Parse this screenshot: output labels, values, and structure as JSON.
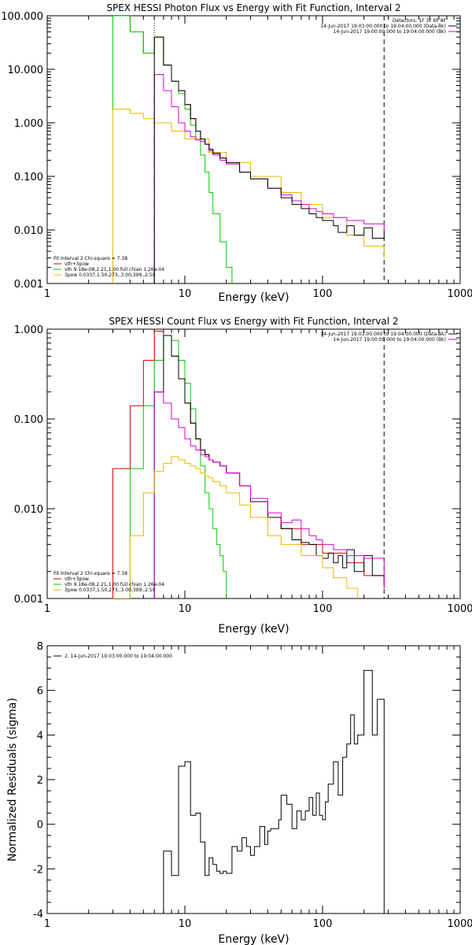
{
  "chart_data": [
    {
      "type": "line",
      "title": "SPEX HESSI Photon Flux vs Energy with Fit Function, Interval 2",
      "xlabel": "Energy (keV)",
      "ylabel": "",
      "xscale": "log",
      "yscale": "log",
      "xlim": [
        1,
        1000
      ],
      "ylim": [
        0.001,
        100
      ],
      "x_ticks": [
        {
          "v": 1,
          "label": "1"
        },
        {
          "v": 10,
          "label": "10"
        },
        {
          "v": 100,
          "label": "100"
        },
        {
          "v": 1000,
          "label": "1000"
        }
      ],
      "y_ticks": [
        {
          "v": 100,
          "label": "100.000"
        },
        {
          "v": 10,
          "label": "10.000"
        },
        {
          "v": 1,
          "label": "1.000"
        },
        {
          "v": 0.1,
          "label": "0.100"
        },
        {
          "v": 0.01,
          "label": "0.010"
        },
        {
          "v": 0.001,
          "label": "0.001"
        }
      ],
      "info": {
        "detectors": "Detectors: 1F 3F 6F 8F",
        "line1": "14-Jun-2017 19:03:00.000 to 19:04:00.000 (Data-Bk)",
        "line2": "14-Jun-2017 19:00:00.000 to 19:04:00.000 (Bk)"
      },
      "info_colors": [
        "#000000",
        "#dd00dd"
      ],
      "legend": {
        "header": "Fit Interval 2   Chi-square = 7.38",
        "entries": [
          {
            "label": "vth+3pow",
            "color": "#dd0000"
          },
          {
            "label": "vth 9.18e-08,2.21,1.00  full chian 1.26e-04",
            "color": "#00cc00"
          },
          {
            "label": "3pow 0.0337,1.50,273.,3.00,399.,2.50",
            "color": "#e6b800"
          }
        ]
      },
      "vlines": [
        {
          "x": 6,
          "style": "dotted"
        },
        {
          "x": 280,
          "style": "dashed"
        }
      ],
      "series": [
        {
          "color": "#dd0000",
          "x": [
            3,
            4,
            5,
            6,
            7,
            8,
            9,
            10,
            11,
            12,
            13,
            14,
            15,
            16,
            18,
            20
          ],
          "values": [
            100,
            50,
            20,
            40,
            12,
            6,
            4,
            2.2,
            1.2,
            0.7,
            0.5,
            0.4,
            0.32,
            0.27,
            0.22,
            0.18
          ]
        },
        {
          "color": "#00cc00",
          "x": [
            3,
            4,
            5,
            6,
            7,
            8,
            9,
            10,
            11,
            12,
            13,
            14,
            15,
            16,
            18,
            20,
            22
          ],
          "values": [
            100,
            50,
            20,
            40,
            12,
            6,
            3.5,
            1.8,
            0.9,
            0.5,
            0.25,
            0.12,
            0.05,
            0.02,
            0.006,
            0.002,
            0.001
          ]
        },
        {
          "color": "#e6b800",
          "x": [
            3,
            4,
            5,
            6,
            8,
            10,
            15,
            20,
            30,
            50,
            70,
            100,
            150,
            200,
            280
          ],
          "values": [
            1.8,
            1.5,
            1.2,
            1.0,
            0.7,
            0.5,
            0.28,
            0.18,
            0.1,
            0.05,
            0.03,
            0.017,
            0.008,
            0.005,
            0.003
          ]
        },
        {
          "color": "#dd00dd",
          "x": [
            6,
            7,
            8,
            9,
            10,
            11,
            12,
            13,
            14,
            15,
            16,
            18,
            20,
            25,
            30,
            40,
            50,
            60,
            70,
            80,
            90,
            100,
            120,
            150,
            200,
            280
          ],
          "values": [
            8,
            4,
            2,
            1,
            0.7,
            0.55,
            0.48,
            0.45,
            0.4,
            0.3,
            0.25,
            0.2,
            0.17,
            0.12,
            0.09,
            0.06,
            0.045,
            0.035,
            0.03,
            0.025,
            0.022,
            0.02,
            0.017,
            0.015,
            0.013,
            0.01
          ]
        },
        {
          "color": "#000000",
          "x": [
            6,
            7,
            8,
            9,
            10,
            11,
            12,
            13,
            14,
            15,
            16,
            18,
            20,
            25,
            30,
            40,
            50,
            60,
            70,
            80,
            90,
            100,
            120,
            130,
            150,
            170,
            200,
            230,
            280
          ],
          "values": [
            40,
            12,
            6,
            4,
            2.2,
            1.2,
            0.7,
            0.5,
            0.4,
            0.32,
            0.27,
            0.22,
            0.18,
            0.12,
            0.09,
            0.06,
            0.04,
            0.03,
            0.025,
            0.02,
            0.017,
            0.015,
            0.012,
            0.009,
            0.012,
            0.008,
            0.011,
            0.007,
            0.009
          ]
        }
      ]
    },
    {
      "type": "line",
      "title": "SPEX HESSI Count Flux vs Energy with Fit Function, Interval 2",
      "xlabel": "Energy (keV)",
      "ylabel": "",
      "xscale": "log",
      "yscale": "log",
      "xlim": [
        1,
        1000
      ],
      "ylim": [
        0.001,
        1
      ],
      "x_ticks": [
        {
          "v": 1,
          "label": "1"
        },
        {
          "v": 10,
          "label": "10"
        },
        {
          "v": 100,
          "label": "100"
        },
        {
          "v": 1000,
          "label": "1000"
        }
      ],
      "y_ticks": [
        {
          "v": 1,
          "label": "1.000"
        },
        {
          "v": 0.1,
          "label": "0.100"
        },
        {
          "v": 0.01,
          "label": "0.010"
        },
        {
          "v": 0.001,
          "label": "0.001"
        }
      ],
      "info": {
        "detectors": "",
        "line1": "14-Jun-2017 19:03:00.000 to 19:04:00.000 (Data-Bk)",
        "line2": "14-Jun-2017 19:00:00.000 to 19:04:00.000 (Bk)"
      },
      "info_colors": [
        "#000000",
        "#dd00dd"
      ],
      "legend": {
        "header": "Fit Interval 2   Chi-square = 7.38",
        "entries": [
          {
            "label": "vth+3pow",
            "color": "#dd0000"
          },
          {
            "label": "vth 9.18e-08,2.21,1.00  full chian 1.26e-04",
            "color": "#00cc00"
          },
          {
            "label": "3pow 0.0337,1.50,273.,3.00,399.,2.50",
            "color": "#e6b800"
          }
        ]
      },
      "vlines": [
        {
          "x": 6,
          "style": "dotted"
        },
        {
          "x": 280,
          "style": "dashed"
        }
      ],
      "series": [
        {
          "color": "#00cc00",
          "x": [
            3,
            4,
            5,
            6,
            7,
            8,
            9,
            10,
            11,
            12,
            13,
            14,
            15,
            16,
            17,
            18,
            19,
            20
          ],
          "values": [
            0.001,
            0.028,
            0.14,
            0.45,
            0.85,
            0.75,
            0.45,
            0.25,
            0.13,
            0.06,
            0.03,
            0.015,
            0.01,
            0.006,
            0.004,
            0.003,
            0.002,
            0.001
          ]
        },
        {
          "color": "#dd0000",
          "x": [
            3,
            4,
            5,
            6,
            7,
            8,
            9,
            10,
            11,
            12,
            13,
            14,
            15,
            16,
            18,
            20,
            25,
            30,
            40,
            50,
            70,
            100,
            150,
            200,
            280
          ],
          "values": [
            0.028,
            0.14,
            0.45,
            0.95,
            0.85,
            0.5,
            0.28,
            0.15,
            0.09,
            0.06,
            0.045,
            0.04,
            0.035,
            0.033,
            0.03,
            0.025,
            0.018,
            0.012,
            0.008,
            0.006,
            0.004,
            0.0032,
            0.0025,
            0.0018,
            0.0013
          ]
        },
        {
          "color": "#000000",
          "x": [
            6,
            7,
            8,
            9,
            10,
            11,
            12,
            13,
            14,
            15,
            16,
            18,
            20,
            25,
            30,
            40,
            50,
            60,
            70,
            80,
            90,
            100,
            110,
            120,
            130,
            140,
            150,
            170,
            200,
            230,
            280
          ],
          "values": [
            0.2,
            0.85,
            0.5,
            0.28,
            0.15,
            0.09,
            0.06,
            0.045,
            0.04,
            0.035,
            0.033,
            0.03,
            0.025,
            0.018,
            0.012,
            0.008,
            0.006,
            0.0045,
            0.0042,
            0.004,
            0.003,
            0.0028,
            0.0032,
            0.0025,
            0.003,
            0.0022,
            0.0035,
            0.002,
            0.003,
            0.0018,
            0.0015
          ]
        },
        {
          "color": "#dd00dd",
          "x": [
            6,
            7,
            8,
            9,
            10,
            11,
            12,
            13,
            14,
            15,
            16,
            18,
            20,
            25,
            30,
            40,
            50,
            60,
            70,
            80,
            90,
            100,
            120,
            150,
            200,
            280
          ],
          "values": [
            0.2,
            0.15,
            0.1,
            0.08,
            0.06,
            0.05,
            0.045,
            0.04,
            0.038,
            0.035,
            0.033,
            0.03,
            0.025,
            0.018,
            0.013,
            0.009,
            0.007,
            0.0075,
            0.006,
            0.005,
            0.0045,
            0.004,
            0.0035,
            0.003,
            0.0028,
            0.0013
          ]
        },
        {
          "color": "#e6b800",
          "x": [
            3,
            4,
            5,
            6,
            7,
            8,
            9,
            10,
            11,
            12,
            13,
            14,
            15,
            16,
            18,
            20,
            25,
            30,
            40,
            50,
            70,
            100,
            120,
            150,
            180
          ],
          "values": [
            0.001,
            0.005,
            0.015,
            0.026,
            0.032,
            0.038,
            0.035,
            0.032,
            0.03,
            0.028,
            0.025,
            0.023,
            0.022,
            0.02,
            0.018,
            0.015,
            0.011,
            0.008,
            0.005,
            0.004,
            0.003,
            0.0022,
            0.0017,
            0.0013,
            0.001
          ]
        }
      ]
    },
    {
      "type": "line",
      "title": "",
      "xlabel": "Energy (keV)",
      "ylabel": "Normalized Residuals (sigma)",
      "xscale": "log",
      "yscale": "linear",
      "xlim": [
        1,
        1000
      ],
      "ylim": [
        -4,
        8
      ],
      "x_ticks": [
        {
          "v": 1,
          "label": "1"
        },
        {
          "v": 10,
          "label": "10"
        },
        {
          "v": 100,
          "label": "100"
        },
        {
          "v": 1000,
          "label": "1000"
        }
      ],
      "y_ticks": [
        {
          "v": 8,
          "label": "8"
        },
        {
          "v": 6,
          "label": "6"
        },
        {
          "v": 4,
          "label": "4"
        },
        {
          "v": 2,
          "label": "2"
        },
        {
          "v": 0,
          "label": "0"
        },
        {
          "v": -2,
          "label": "-2"
        },
        {
          "v": -4,
          "label": "-4"
        }
      ],
      "legend": {
        "header": "",
        "entries": [
          {
            "label": "2. 14-Jun-2017 19:03:00.000 to 19:04:00.000",
            "color": "#000000"
          }
        ]
      },
      "series": [
        {
          "color": "#000000",
          "x": [
            6,
            7,
            8,
            9,
            10,
            11,
            12,
            13,
            14,
            15,
            16,
            17,
            18,
            19,
            20,
            22,
            24,
            26,
            28,
            30,
            32,
            35,
            38,
            40,
            42,
            45,
            48,
            50,
            55,
            60,
            65,
            70,
            75,
            80,
            85,
            90,
            95,
            100,
            105,
            110,
            120,
            130,
            140,
            150,
            160,
            170,
            180,
            200,
            230,
            250,
            280
          ],
          "values": [
            -4,
            -1.2,
            -2.3,
            2.6,
            2.8,
            0.4,
            0.5,
            -0.8,
            -2.3,
            -1.5,
            -1.8,
            -2.1,
            -2.2,
            -2.1,
            -2.2,
            -1.0,
            -1.2,
            -0.6,
            -1.0,
            -1.4,
            -1.0,
            -0.1,
            -0.9,
            -0.3,
            -0.2,
            -0.2,
            0.2,
            1.3,
            0.9,
            -0.2,
            0.6,
            0.2,
            0.6,
            1.2,
            0.4,
            1.4,
            0.4,
            0.2,
            1.0,
            1.8,
            2.8,
            1.3,
            3.0,
            3.6,
            4.9,
            3.6,
            4.0,
            6.9,
            4.0,
            5.6,
            -4
          ]
        }
      ]
    }
  ]
}
